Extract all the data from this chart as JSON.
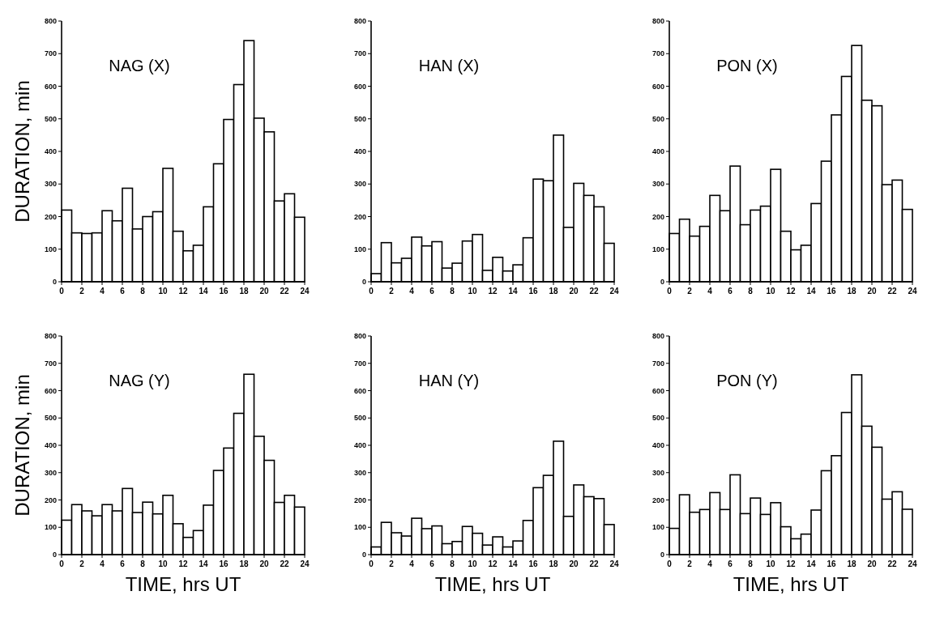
{
  "chart_data": [
    {
      "type": "histogram",
      "title": "NAG (X)",
      "ylabel": "DURATION, min",
      "color": "#ffffff",
      "bins": [
        0,
        1,
        2,
        3,
        4,
        5,
        6,
        7,
        8,
        9,
        10,
        11,
        12,
        13,
        14,
        15,
        16,
        17,
        18,
        19,
        20,
        21,
        22,
        23,
        24
      ],
      "values": [
        220,
        150,
        148,
        150,
        218,
        187,
        287,
        162,
        200,
        215,
        348,
        155,
        95,
        112,
        230,
        362,
        498,
        605,
        740,
        502,
        460,
        248,
        270,
        198
      ],
      "xlim": [
        0,
        24
      ],
      "xticks": [
        0,
        2,
        4,
        6,
        8,
        10,
        12,
        14,
        16,
        18,
        20,
        22,
        24
      ],
      "ylim": [
        0,
        800
      ],
      "yticks": [
        0,
        100,
        200,
        300,
        400,
        500,
        600,
        700,
        800
      ]
    },
    {
      "type": "histogram",
      "title": "HAN (X)",
      "color": "#ffffff",
      "bins": [
        0,
        1,
        2,
        3,
        4,
        5,
        6,
        7,
        8,
        9,
        10,
        11,
        12,
        13,
        14,
        15,
        16,
        17,
        18,
        19,
        20,
        21,
        22,
        23,
        24
      ],
      "values": [
        25,
        120,
        58,
        72,
        137,
        110,
        123,
        42,
        57,
        125,
        145,
        35,
        75,
        33,
        52,
        135,
        315,
        310,
        450,
        167,
        302,
        265,
        230,
        118
      ],
      "xlim": [
        0,
        24
      ],
      "xticks": [
        0,
        2,
        4,
        6,
        8,
        10,
        12,
        14,
        16,
        18,
        20,
        22,
        24
      ],
      "ylim": [
        0,
        800
      ],
      "yticks": [
        0,
        100,
        200,
        300,
        400,
        500,
        600,
        700,
        800
      ]
    },
    {
      "type": "histogram",
      "title": "PON (X)",
      "color": "#ffffff",
      "bins": [
        0,
        1,
        2,
        3,
        4,
        5,
        6,
        7,
        8,
        9,
        10,
        11,
        12,
        13,
        14,
        15,
        16,
        17,
        18,
        19,
        20,
        21,
        22,
        23,
        24
      ],
      "values": [
        148,
        192,
        140,
        170,
        265,
        218,
        355,
        175,
        220,
        232,
        345,
        155,
        98,
        112,
        240,
        370,
        512,
        630,
        725,
        557,
        540,
        298,
        312,
        222
      ],
      "xlim": [
        0,
        24
      ],
      "xticks": [
        0,
        2,
        4,
        6,
        8,
        10,
        12,
        14,
        16,
        18,
        20,
        22,
        24
      ],
      "ylim": [
        0,
        800
      ],
      "yticks": [
        0,
        100,
        200,
        300,
        400,
        500,
        600,
        700,
        800
      ]
    },
    {
      "type": "histogram",
      "title": "NAG (Y)",
      "ylabel": "DURATION, min",
      "xlabel": "TIME, hrs UT",
      "color": "#ffffff",
      "bins": [
        0,
        1,
        2,
        3,
        4,
        5,
        6,
        7,
        8,
        9,
        10,
        11,
        12,
        13,
        14,
        15,
        16,
        17,
        18,
        19,
        20,
        21,
        22,
        23,
        24
      ],
      "values": [
        126,
        183,
        160,
        142,
        183,
        160,
        242,
        154,
        192,
        149,
        217,
        113,
        63,
        88,
        181,
        308,
        390,
        517,
        660,
        433,
        345,
        191,
        217,
        174
      ],
      "xlim": [
        0,
        24
      ],
      "xticks": [
        0,
        2,
        4,
        6,
        8,
        10,
        12,
        14,
        16,
        18,
        20,
        22,
        24
      ],
      "ylim": [
        0,
        800
      ],
      "yticks": [
        0,
        100,
        200,
        300,
        400,
        500,
        600,
        700,
        800
      ]
    },
    {
      "type": "histogram",
      "title": "HAN (Y)",
      "xlabel": "TIME, hrs UT",
      "color": "#ffffff",
      "bins": [
        0,
        1,
        2,
        3,
        4,
        5,
        6,
        7,
        8,
        9,
        10,
        11,
        12,
        13,
        14,
        15,
        16,
        17,
        18,
        19,
        20,
        21,
        22,
        23,
        24
      ],
      "values": [
        28,
        118,
        80,
        68,
        133,
        95,
        105,
        40,
        48,
        103,
        78,
        35,
        65,
        28,
        50,
        125,
        245,
        290,
        415,
        140,
        255,
        212,
        205,
        110
      ],
      "xlim": [
        0,
        24
      ],
      "xticks": [
        0,
        2,
        4,
        6,
        8,
        10,
        12,
        14,
        16,
        18,
        20,
        22,
        24
      ],
      "ylim": [
        0,
        800
      ],
      "yticks": [
        0,
        100,
        200,
        300,
        400,
        500,
        600,
        700,
        800
      ]
    },
    {
      "type": "histogram",
      "title": "PON (Y)",
      "xlabel": "TIME, hrs UT",
      "color": "#ffffff",
      "bins": [
        0,
        1,
        2,
        3,
        4,
        5,
        6,
        7,
        8,
        9,
        10,
        11,
        12,
        13,
        14,
        15,
        16,
        17,
        18,
        19,
        20,
        21,
        22,
        23,
        24
      ],
      "values": [
        96,
        219,
        155,
        165,
        227,
        165,
        292,
        150,
        207,
        147,
        190,
        102,
        58,
        75,
        163,
        307,
        362,
        520,
        658,
        470,
        393,
        203,
        230,
        166
      ],
      "xlim": [
        0,
        24
      ],
      "xticks": [
        0,
        2,
        4,
        6,
        8,
        10,
        12,
        14,
        16,
        18,
        20,
        22,
        24
      ],
      "ylim": [
        0,
        800
      ],
      "yticks": [
        0,
        100,
        200,
        300,
        400,
        500,
        600,
        700,
        800
      ]
    }
  ]
}
